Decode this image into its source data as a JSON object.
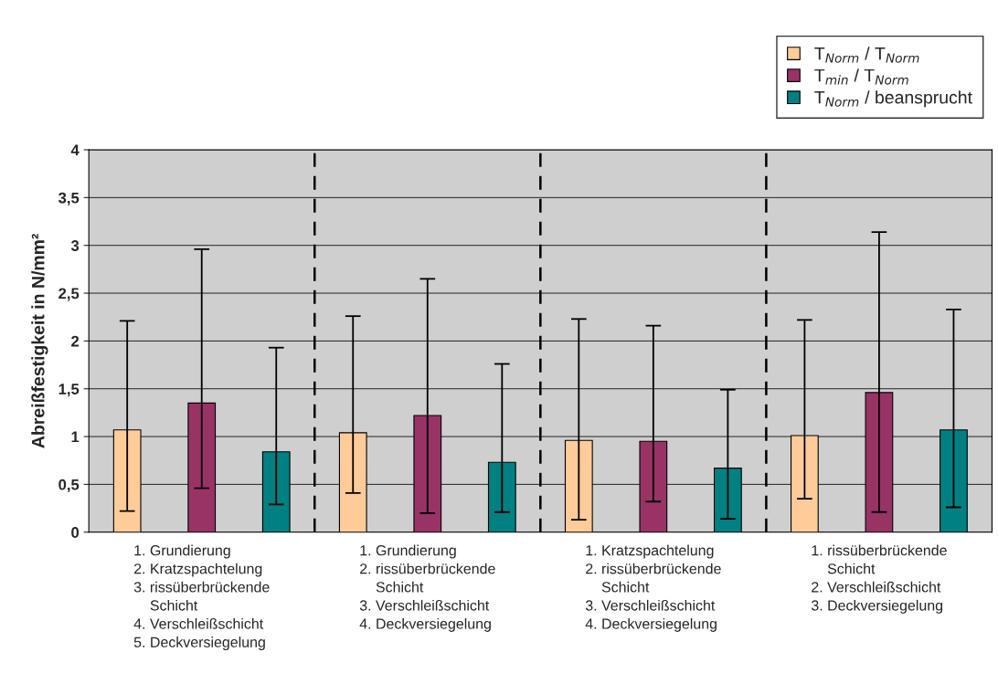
{
  "chart_data": {
    "type": "bar",
    "ylabel": "Abreißfestigkeit in N/mm²",
    "categories": [
      "1. Grundierung\n2. Kratzspachtelung\n3. rissüberbrückende\n    Schicht\n4. Verschleißschicht\n5. Deckversiegelung",
      "1. Grundierung\n2. rissüberbrückende\n    Schicht\n3. Verschleißschicht\n4. Deckversiegelung",
      "1. Kratzspachtelung\n2. rissüberbrückende\n    Schicht\n3. Verschleißschicht\n4. Deckversiegelung",
      "1. rissüberbrückende\n    Schicht\n2. Verschleißschicht\n3. Deckversiegelung"
    ],
    "series": [
      {
        "name": "T$_{Norm}$ / T$_{Norm}$",
        "color": "#ffcc99",
        "values": [
          1.07,
          1.04,
          0.96,
          1.01
        ],
        "errors": [
          [
            0.22,
            2.21
          ],
          [
            0.41,
            2.26
          ],
          [
            0.13,
            2.23
          ],
          [
            0.35,
            2.22
          ]
        ]
      },
      {
        "name": "T$_{min}$ / T$_{Norm}$",
        "color": "#993366",
        "values": [
          1.35,
          1.22,
          0.95,
          1.46
        ],
        "errors": [
          [
            0.46,
            2.96
          ],
          [
            0.2,
            2.65
          ],
          [
            0.32,
            2.16
          ],
          [
            0.21,
            3.14
          ]
        ]
      },
      {
        "name": "T$_{Norm}$ / beansprucht",
        "color": "#008080",
        "values": [
          0.84,
          0.73,
          0.67,
          1.07
        ],
        "errors": [
          [
            0.29,
            1.93
          ],
          [
            0.21,
            1.76
          ],
          [
            0.14,
            1.49
          ],
          [
            0.26,
            2.33
          ]
        ]
      }
    ],
    "ylim": [
      0,
      4
    ],
    "yticks": [
      0,
      {
        "value": 0.5,
        "label": "0,5"
      },
      1,
      {
        "value": 1.5,
        "label": "1,5"
      },
      2,
      {
        "value": 2.5,
        "label": "2,5"
      },
      3,
      {
        "value": 3.5,
        "label": "3,5"
      },
      4
    ],
    "grid": "y",
    "legend": "top right"
  }
}
